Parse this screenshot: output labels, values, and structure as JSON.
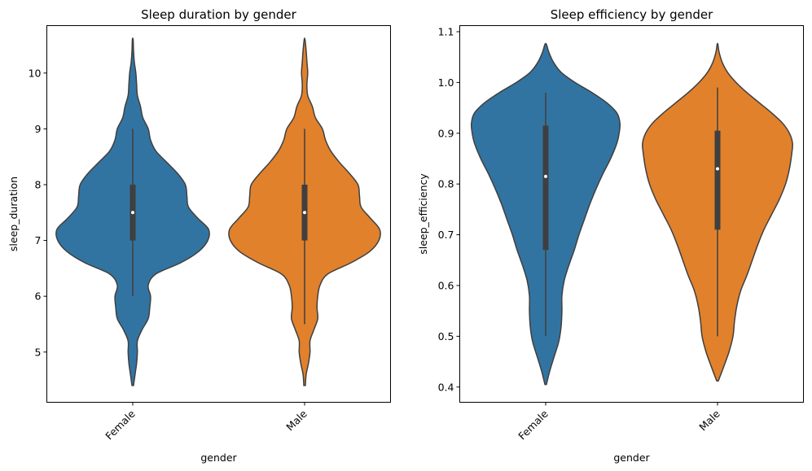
{
  "chart_data": [
    {
      "type": "violin",
      "title": "Sleep duration by gender",
      "xlabel": "gender",
      "ylabel": "sleep_duration",
      "categories": [
        "Female",
        "Male"
      ],
      "ylim": [
        4.1,
        10.85
      ],
      "yticks": [
        "5",
        "6",
        "7",
        "8",
        "9",
        "10"
      ],
      "colors": [
        "#3274a1",
        "#e1812c"
      ],
      "series": [
        {
          "name": "Female",
          "box": {
            "min": 6.0,
            "q1": 7.0,
            "median": 7.5,
            "q3": 8.0,
            "max": 9.0
          },
          "range": [
            4.4,
            10.6
          ],
          "density": [
            [
              4.4,
              0.01
            ],
            [
              4.6,
              0.03
            ],
            [
              4.8,
              0.05
            ],
            [
              5.0,
              0.06
            ],
            [
              5.2,
              0.06
            ],
            [
              5.4,
              0.12
            ],
            [
              5.6,
              0.2
            ],
            [
              5.8,
              0.22
            ],
            [
              6.0,
              0.23
            ],
            [
              6.2,
              0.2
            ],
            [
              6.4,
              0.3
            ],
            [
              6.6,
              0.62
            ],
            [
              6.8,
              0.85
            ],
            [
              7.0,
              0.97
            ],
            [
              7.2,
              0.98
            ],
            [
              7.4,
              0.84
            ],
            [
              7.6,
              0.72
            ],
            [
              7.8,
              0.7
            ],
            [
              8.0,
              0.68
            ],
            [
              8.2,
              0.58
            ],
            [
              8.4,
              0.44
            ],
            [
              8.6,
              0.3
            ],
            [
              8.8,
              0.23
            ],
            [
              9.0,
              0.2
            ],
            [
              9.2,
              0.13
            ],
            [
              9.4,
              0.1
            ],
            [
              9.6,
              0.06
            ],
            [
              9.8,
              0.05
            ],
            [
              10.0,
              0.04
            ],
            [
              10.2,
              0.02
            ],
            [
              10.4,
              0.01
            ],
            [
              10.6,
              0.005
            ]
          ]
        },
        {
          "name": "Male",
          "box": {
            "min": 5.5,
            "q1": 7.0,
            "median": 7.5,
            "q3": 8.0,
            "max": 9.0
          },
          "range": [
            4.4,
            10.6
          ],
          "density": [
            [
              4.4,
              0.01
            ],
            [
              4.6,
              0.02
            ],
            [
              4.8,
              0.05
            ],
            [
              5.0,
              0.07
            ],
            [
              5.2,
              0.07
            ],
            [
              5.4,
              0.12
            ],
            [
              5.6,
              0.17
            ],
            [
              5.8,
              0.16
            ],
            [
              6.0,
              0.17
            ],
            [
              6.2,
              0.2
            ],
            [
              6.4,
              0.3
            ],
            [
              6.6,
              0.6
            ],
            [
              6.8,
              0.84
            ],
            [
              7.0,
              0.96
            ],
            [
              7.2,
              0.97
            ],
            [
              7.4,
              0.85
            ],
            [
              7.6,
              0.73
            ],
            [
              7.8,
              0.71
            ],
            [
              8.0,
              0.69
            ],
            [
              8.2,
              0.58
            ],
            [
              8.4,
              0.45
            ],
            [
              8.6,
              0.34
            ],
            [
              8.8,
              0.27
            ],
            [
              9.0,
              0.23
            ],
            [
              9.2,
              0.14
            ],
            [
              9.4,
              0.1
            ],
            [
              9.6,
              0.04
            ],
            [
              9.8,
              0.03
            ],
            [
              10.0,
              0.04
            ],
            [
              10.2,
              0.03
            ],
            [
              10.4,
              0.02
            ],
            [
              10.6,
              0.005
            ]
          ]
        }
      ]
    },
    {
      "type": "violin",
      "title": "Sleep efficiency by gender",
      "xlabel": "gender",
      "ylabel": "sleep_efficiency",
      "categories": [
        "Female",
        "Male"
      ],
      "ylim": [
        0.37,
        1.112
      ],
      "yticks": [
        "0.4",
        "0.5",
        "0.6",
        "0.7",
        "0.8",
        "0.9",
        "1.0",
        "1.1"
      ],
      "colors": [
        "#3274a1",
        "#e1812c"
      ],
      "series": [
        {
          "name": "Female",
          "box": {
            "min": 0.5,
            "q1": 0.67,
            "median": 0.815,
            "q3": 0.915,
            "max": 0.98
          },
          "range": [
            0.405,
            1.075
          ],
          "density": [
            [
              0.405,
              0.01
            ],
            [
              0.43,
              0.05
            ],
            [
              0.46,
              0.11
            ],
            [
              0.49,
              0.17
            ],
            [
              0.52,
              0.2
            ],
            [
              0.55,
              0.21
            ],
            [
              0.58,
              0.21
            ],
            [
              0.61,
              0.24
            ],
            [
              0.64,
              0.3
            ],
            [
              0.67,
              0.37
            ],
            [
              0.7,
              0.43
            ],
            [
              0.73,
              0.5
            ],
            [
              0.76,
              0.57
            ],
            [
              0.79,
              0.65
            ],
            [
              0.82,
              0.74
            ],
            [
              0.85,
              0.84
            ],
            [
              0.88,
              0.92
            ],
            [
              0.9,
              0.95
            ],
            [
              0.92,
              0.96
            ],
            [
              0.94,
              0.92
            ],
            [
              0.96,
              0.79
            ],
            [
              0.98,
              0.6
            ],
            [
              1.0,
              0.38
            ],
            [
              1.02,
              0.2
            ],
            [
              1.04,
              0.1
            ],
            [
              1.06,
              0.04
            ],
            [
              1.075,
              0.01
            ]
          ]
        },
        {
          "name": "Male",
          "box": {
            "min": 0.5,
            "q1": 0.71,
            "median": 0.83,
            "q3": 0.905,
            "max": 0.99
          },
          "range": [
            0.412,
            1.075
          ],
          "density": [
            [
              0.412,
              0.01
            ],
            [
              0.44,
              0.08
            ],
            [
              0.47,
              0.15
            ],
            [
              0.5,
              0.2
            ],
            [
              0.53,
              0.22
            ],
            [
              0.56,
              0.25
            ],
            [
              0.59,
              0.3
            ],
            [
              0.62,
              0.38
            ],
            [
              0.65,
              0.45
            ],
            [
              0.68,
              0.52
            ],
            [
              0.71,
              0.6
            ],
            [
              0.74,
              0.7
            ],
            [
              0.77,
              0.8
            ],
            [
              0.8,
              0.88
            ],
            [
              0.83,
              0.93
            ],
            [
              0.86,
              0.96
            ],
            [
              0.88,
              0.97
            ],
            [
              0.9,
              0.93
            ],
            [
              0.92,
              0.84
            ],
            [
              0.94,
              0.7
            ],
            [
              0.96,
              0.54
            ],
            [
              0.98,
              0.38
            ],
            [
              1.0,
              0.24
            ],
            [
              1.02,
              0.13
            ],
            [
              1.04,
              0.06
            ],
            [
              1.06,
              0.02
            ],
            [
              1.075,
              0.005
            ]
          ]
        }
      ]
    }
  ]
}
